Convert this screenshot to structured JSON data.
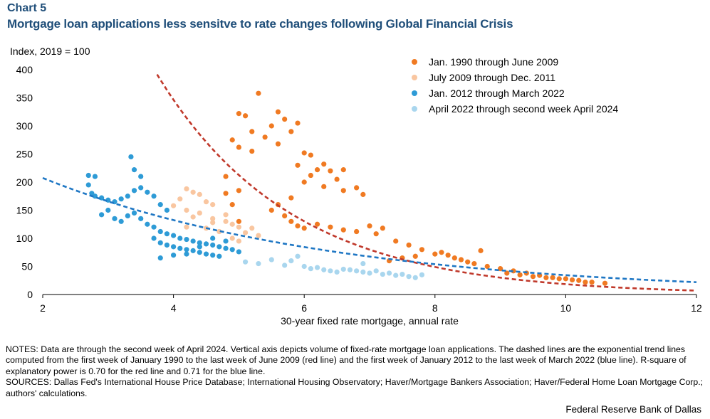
{
  "header": {
    "chart_label": "Chart 5",
    "title": "Mortgage loan applications less sensitve to rate changes following Global Financial Crisis"
  },
  "chart_data": {
    "type": "scatter",
    "title": "Mortgage loan applications less sensitve to rate changes following Global Financial Crisis",
    "ylabel": "Index, 2019 = 100",
    "xlabel": "30-year fixed rate mortgage, annual rate",
    "xlim": [
      2,
      12
    ],
    "ylim": [
      0,
      400
    ],
    "x_ticks": [
      "2",
      "4",
      "6",
      "8",
      "10",
      "12"
    ],
    "y_ticks": [
      "0",
      "50",
      "100",
      "150",
      "200",
      "250",
      "300",
      "350",
      "400"
    ],
    "legend_position": "top-right",
    "series": [
      {
        "name": "Jan. 1990 through June 2009",
        "color": "#f07a22",
        "points": [
          [
            5.3,
            358
          ],
          [
            5.0,
            322
          ],
          [
            5.1,
            318
          ],
          [
            5.6,
            325
          ],
          [
            5.7,
            312
          ],
          [
            5.9,
            305
          ],
          [
            5.8,
            290
          ],
          [
            5.2,
            290
          ],
          [
            5.4,
            280
          ],
          [
            5.5,
            300
          ],
          [
            4.9,
            275
          ],
          [
            5.0,
            262
          ],
          [
            5.2,
            255
          ],
          [
            5.6,
            268
          ],
          [
            6.0,
            252
          ],
          [
            6.1,
            248
          ],
          [
            6.3,
            232
          ],
          [
            5.9,
            230
          ],
          [
            6.2,
            222
          ],
          [
            6.4,
            220
          ],
          [
            6.6,
            222
          ],
          [
            6.1,
            212
          ],
          [
            6.0,
            200
          ],
          [
            6.5,
            205
          ],
          [
            6.3,
            192
          ],
          [
            6.6,
            185
          ],
          [
            6.8,
            190
          ],
          [
            6.9,
            178
          ],
          [
            4.8,
            210
          ],
          [
            5.0,
            185
          ],
          [
            4.8,
            180
          ],
          [
            4.9,
            160
          ],
          [
            5.0,
            130
          ],
          [
            5.8,
            172
          ],
          [
            5.6,
            160
          ],
          [
            5.5,
            150
          ],
          [
            5.7,
            140
          ],
          [
            5.8,
            130
          ],
          [
            5.9,
            122
          ],
          [
            6.0,
            118
          ],
          [
            6.2,
            125
          ],
          [
            6.4,
            120
          ],
          [
            6.6,
            115
          ],
          [
            6.8,
            112
          ],
          [
            7.0,
            122
          ],
          [
            7.2,
            118
          ],
          [
            7.4,
            95
          ],
          [
            7.6,
            88
          ],
          [
            7.8,
            80
          ],
          [
            8.0,
            72
          ],
          [
            8.2,
            70
          ],
          [
            8.4,
            62
          ],
          [
            8.6,
            55
          ],
          [
            8.8,
            50
          ],
          [
            9.0,
            46
          ],
          [
            9.2,
            42
          ],
          [
            9.4,
            38
          ],
          [
            9.6,
            34
          ],
          [
            9.8,
            30
          ],
          [
            10.0,
            28
          ],
          [
            10.2,
            25
          ],
          [
            10.4,
            22
          ],
          [
            10.6,
            20
          ],
          [
            7.1,
            108
          ],
          [
            7.3,
            60
          ],
          [
            7.5,
            65
          ],
          [
            7.7,
            68
          ],
          [
            8.1,
            75
          ],
          [
            8.3,
            65
          ],
          [
            8.5,
            58
          ],
          [
            8.7,
            78
          ],
          [
            9.1,
            38
          ],
          [
            9.3,
            35
          ],
          [
            9.5,
            32
          ],
          [
            9.7,
            30
          ],
          [
            9.9,
            28
          ],
          [
            10.1,
            26
          ],
          [
            10.3,
            22
          ]
        ]
      },
      {
        "name": "July 2009 through Dec. 2011",
        "color": "#f9c6a0",
        "points": [
          [
            4.2,
            188
          ],
          [
            4.3,
            182
          ],
          [
            4.4,
            178
          ],
          [
            4.1,
            170
          ],
          [
            4.5,
            165
          ],
          [
            4.6,
            160
          ],
          [
            4.0,
            158
          ],
          [
            4.2,
            150
          ],
          [
            4.4,
            145
          ],
          [
            4.3,
            138
          ],
          [
            4.6,
            135
          ],
          [
            4.8,
            130
          ],
          [
            4.9,
            125
          ],
          [
            5.0,
            120
          ],
          [
            5.2,
            118
          ],
          [
            5.1,
            110
          ],
          [
            4.7,
            112
          ],
          [
            4.5,
            118
          ],
          [
            4.2,
            120
          ],
          [
            4.9,
            100
          ],
          [
            5.0,
            95
          ],
          [
            5.3,
            105
          ],
          [
            4.8,
            142
          ],
          [
            4.6,
            128
          ]
        ]
      },
      {
        "name": "Jan. 2012 through March 2022",
        "color": "#2e9bd6",
        "points": [
          [
            2.7,
            212
          ],
          [
            2.8,
            210
          ],
          [
            3.35,
            245
          ],
          [
            3.4,
            222
          ],
          [
            3.5,
            210
          ],
          [
            2.7,
            195
          ],
          [
            2.75,
            180
          ],
          [
            2.8,
            175
          ],
          [
            2.9,
            172
          ],
          [
            3.0,
            168
          ],
          [
            3.1,
            165
          ],
          [
            3.2,
            170
          ],
          [
            3.3,
            175
          ],
          [
            3.4,
            185
          ],
          [
            3.5,
            190
          ],
          [
            3.6,
            182
          ],
          [
            3.7,
            175
          ],
          [
            3.8,
            160
          ],
          [
            3.9,
            150
          ],
          [
            3.0,
            150
          ],
          [
            2.9,
            142
          ],
          [
            3.1,
            135
          ],
          [
            3.2,
            130
          ],
          [
            3.3,
            140
          ],
          [
            3.4,
            145
          ],
          [
            3.5,
            135
          ],
          [
            3.6,
            125
          ],
          [
            3.7,
            120
          ],
          [
            3.8,
            112
          ],
          [
            3.9,
            108
          ],
          [
            4.0,
            105
          ],
          [
            4.1,
            100
          ],
          [
            4.2,
            98
          ],
          [
            4.3,
            95
          ],
          [
            4.4,
            92
          ],
          [
            4.5,
            90
          ],
          [
            4.6,
            88
          ],
          [
            4.7,
            85
          ],
          [
            4.8,
            82
          ],
          [
            4.9,
            80
          ],
          [
            5.0,
            76
          ],
          [
            3.7,
            100
          ],
          [
            3.8,
            92
          ],
          [
            3.9,
            88
          ],
          [
            4.0,
            85
          ],
          [
            4.1,
            82
          ],
          [
            4.2,
            80
          ],
          [
            4.3,
            78
          ],
          [
            4.4,
            75
          ],
          [
            4.5,
            72
          ],
          [
            4.6,
            70
          ],
          [
            4.7,
            68
          ],
          [
            3.8,
            65
          ],
          [
            4.0,
            70
          ],
          [
            4.2,
            72
          ],
          [
            4.4,
            85
          ],
          [
            4.6,
            100
          ],
          [
            4.8,
            95
          ]
        ]
      },
      {
        "name": "April 2022 through second week April 2024",
        "color": "#a9d6ee",
        "points": [
          [
            5.1,
            58
          ],
          [
            5.3,
            55
          ],
          [
            5.5,
            62
          ],
          [
            5.7,
            52
          ],
          [
            5.8,
            60
          ],
          [
            5.9,
            68
          ],
          [
            6.0,
            50
          ],
          [
            6.1,
            46
          ],
          [
            6.2,
            48
          ],
          [
            6.3,
            44
          ],
          [
            6.4,
            42
          ],
          [
            6.5,
            40
          ],
          [
            6.6,
            45
          ],
          [
            6.7,
            44
          ],
          [
            6.8,
            42
          ],
          [
            6.9,
            40
          ],
          [
            7.0,
            38
          ],
          [
            7.1,
            42
          ],
          [
            7.2,
            36
          ],
          [
            7.3,
            38
          ],
          [
            7.4,
            34
          ],
          [
            7.5,
            36
          ],
          [
            7.6,
            32
          ],
          [
            7.7,
            30
          ],
          [
            6.9,
            55
          ],
          [
            7.8,
            35
          ]
        ]
      }
    ],
    "trend_lines": [
      {
        "color": "#c0392b",
        "x_range": [
          3.75,
          12.0
        ],
        "a": 2450,
        "b": 0.489
      },
      {
        "color": "#1f77c4",
        "x_range": [
          2.0,
          12.0
        ],
        "a": 325,
        "b": 0.2246
      }
    ]
  },
  "notes": {
    "line1": "NOTES: Data are through the second week of April 2024. Vertical axis depicts volume of fixed-rate mortgage loan applications. The dashed lines are the exponential trend lines computed from the first week of January 1990 to the last week of June 2009 (red line) and the first week of January 2012 to the last week of March 2022 (blue line). R-square of explanatory power is 0.70 for the red line and 0.71 for the blue line.",
    "line2": "SOURCES: Dallas Fed's International House Price Database; International Housing Observatory; Haver/Mortgage Bankers Association; Haver/Federal Home Loan Mortgage Corp.; authors' calculations."
  },
  "footer": {
    "source": "Federal Reserve Bank of Dallas"
  }
}
